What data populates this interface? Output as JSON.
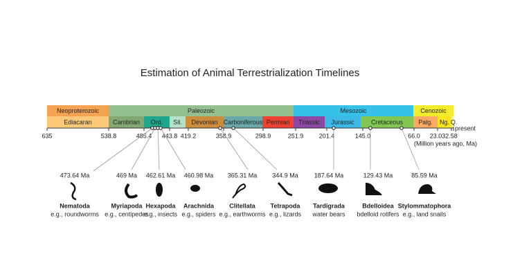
{
  "title": "Estimation of Animal Terrestrialization Timelines",
  "eras": [
    {
      "label": "Neoproterozoic"
    },
    {
      "label": "Paleozoic"
    },
    {
      "label": "Mesozoic"
    },
    {
      "label": "Cenozoic"
    }
  ],
  "periods": [
    {
      "label": "Ediacaran"
    },
    {
      "label": "Cambrian"
    },
    {
      "label": "Ord."
    },
    {
      "label": "Sil."
    },
    {
      "label": "Devonian"
    },
    {
      "label": "Carboniferous"
    },
    {
      "label": "Permian"
    },
    {
      "label": "Triassic"
    },
    {
      "label": "Jurassic"
    },
    {
      "label": "Cretaceous"
    },
    {
      "label": "Palg."
    },
    {
      "label": "Ng."
    },
    {
      "label": "Q."
    }
  ],
  "ticks": [
    "635",
    "538.8",
    "485.4",
    "443.8",
    "419.2",
    "358.9",
    "298.9",
    "251.9",
    "201.4",
    "145.0",
    "66.0",
    "23.03",
    "2.58"
  ],
  "present": "present",
  "unit": "(Million years ago, Ma)",
  "groups": [
    {
      "age": "473.64 Ma",
      "name": "Nematoda",
      "example": "e.g., roundworms"
    },
    {
      "age": "469 Ma",
      "name": "Myriapoda",
      "example": "e.g., centipedes"
    },
    {
      "age": "462.61 Ma",
      "name": "Hexapoda",
      "example": "e.g., insects"
    },
    {
      "age": "460.98 Ma",
      "name": "Arachnida",
      "example": "e.g., spiders"
    },
    {
      "age": "365.31 Ma",
      "name": "Clitellata",
      "example": "e.g., earthworms"
    },
    {
      "age": "344.9 Ma",
      "name": "Tetrapoda",
      "example": "e.g., lizards"
    },
    {
      "age": "187.64 Ma",
      "name": "Tardigrada",
      "example": "water bears"
    },
    {
      "age": "129.43 Ma",
      "name": "Bdelloidea",
      "example": "bdelloid rotifers"
    },
    {
      "age": "85.59 Ma",
      "name": "Stylommatophora",
      "example": "e.g., land snails"
    }
  ]
}
